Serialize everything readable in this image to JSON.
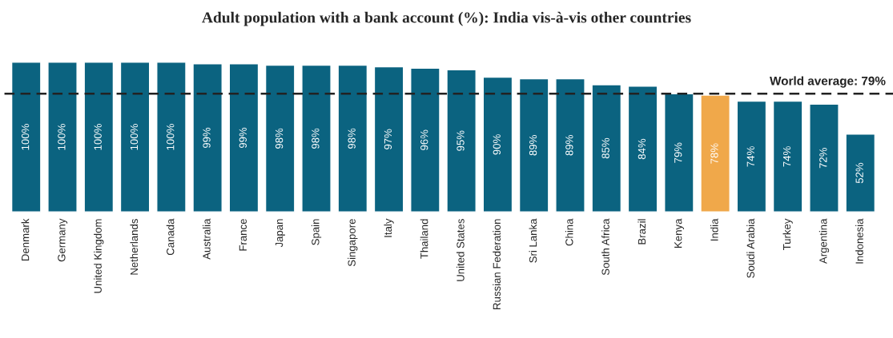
{
  "chart_data": {
    "type": "bar",
    "title": "Adult population with a bank account (%): India vis-à-vis other countries",
    "categories": [
      "Denmark",
      "Germany",
      "United Kingdom",
      "Netherlands",
      "Canada",
      "Australia",
      "France",
      "Japan",
      "Spain",
      "Singapore",
      "Italy",
      "Thailand",
      "United States",
      "Russian Federation",
      "Sri Lanka",
      "China",
      "South Africa",
      "Brazil",
      "Kenya",
      "India",
      "Soudi Arabia",
      "Turkey",
      "Argentina",
      "Indonesia"
    ],
    "values": [
      100,
      100,
      100,
      100,
      100,
      99,
      99,
      98,
      98,
      98,
      97,
      96,
      95,
      90,
      89,
      89,
      85,
      84,
      79,
      78,
      74,
      74,
      72,
      52
    ],
    "colors": [
      "#0b6380",
      "#0b6380",
      "#0b6380",
      "#0b6380",
      "#0b6380",
      "#0b6380",
      "#0b6380",
      "#0b6380",
      "#0b6380",
      "#0b6380",
      "#0b6380",
      "#0b6380",
      "#0b6380",
      "#0b6380",
      "#0b6380",
      "#0b6380",
      "#0b6380",
      "#0b6380",
      "#0b6380",
      "#f0a84a",
      "#0b6380",
      "#0b6380",
      "#0b6380",
      "#0b6380"
    ],
    "value_labels": [
      "100%",
      "100%",
      "100%",
      "100%",
      "100%",
      "99%",
      "99%",
      "98%",
      "98%",
      "98%",
      "97%",
      "96%",
      "95%",
      "90%",
      "89%",
      "89%",
      "85%",
      "84%",
      "79%",
      "78%",
      "74%",
      "74%",
      "72%",
      "52%"
    ],
    "ref_lines": [
      {
        "axis": "y",
        "value": 79,
        "label": "World average: 79%",
        "color": "#222222",
        "line_style": "dashed"
      }
    ],
    "grid": false,
    "legend": false
  }
}
